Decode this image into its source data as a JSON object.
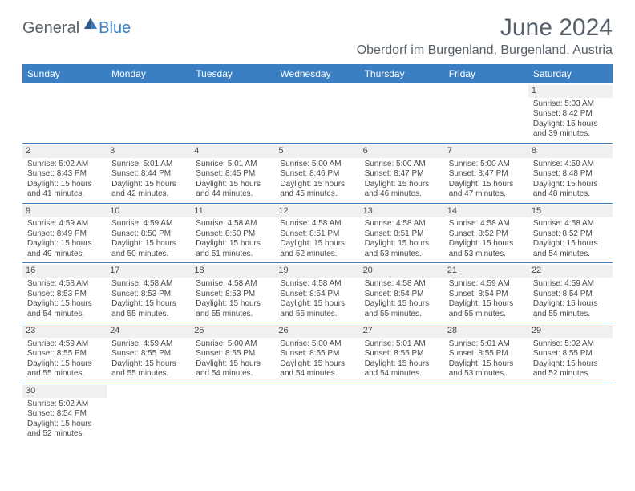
{
  "logo": {
    "text1": "General",
    "text2": "Blue"
  },
  "title": "June 2024",
  "location": "Oberdorf im Burgenland, Burgenland, Austria",
  "colors": {
    "header_bg": "#3a7fc4",
    "header_text": "#ffffff",
    "daynum_bg": "#f0f0f0",
    "text": "#4a4a4a",
    "rule": "#3a7fc4"
  },
  "dayNames": [
    "Sunday",
    "Monday",
    "Tuesday",
    "Wednesday",
    "Thursday",
    "Friday",
    "Saturday"
  ],
  "weeks": [
    [
      null,
      null,
      null,
      null,
      null,
      null,
      {
        "d": "1",
        "sr": "Sunrise: 5:03 AM",
        "ss": "Sunset: 8:42 PM",
        "dl": "Daylight: 15 hours and 39 minutes."
      }
    ],
    [
      {
        "d": "2",
        "sr": "Sunrise: 5:02 AM",
        "ss": "Sunset: 8:43 PM",
        "dl": "Daylight: 15 hours and 41 minutes."
      },
      {
        "d": "3",
        "sr": "Sunrise: 5:01 AM",
        "ss": "Sunset: 8:44 PM",
        "dl": "Daylight: 15 hours and 42 minutes."
      },
      {
        "d": "4",
        "sr": "Sunrise: 5:01 AM",
        "ss": "Sunset: 8:45 PM",
        "dl": "Daylight: 15 hours and 44 minutes."
      },
      {
        "d": "5",
        "sr": "Sunrise: 5:00 AM",
        "ss": "Sunset: 8:46 PM",
        "dl": "Daylight: 15 hours and 45 minutes."
      },
      {
        "d": "6",
        "sr": "Sunrise: 5:00 AM",
        "ss": "Sunset: 8:47 PM",
        "dl": "Daylight: 15 hours and 46 minutes."
      },
      {
        "d": "7",
        "sr": "Sunrise: 5:00 AM",
        "ss": "Sunset: 8:47 PM",
        "dl": "Daylight: 15 hours and 47 minutes."
      },
      {
        "d": "8",
        "sr": "Sunrise: 4:59 AM",
        "ss": "Sunset: 8:48 PM",
        "dl": "Daylight: 15 hours and 48 minutes."
      }
    ],
    [
      {
        "d": "9",
        "sr": "Sunrise: 4:59 AM",
        "ss": "Sunset: 8:49 PM",
        "dl": "Daylight: 15 hours and 49 minutes."
      },
      {
        "d": "10",
        "sr": "Sunrise: 4:59 AM",
        "ss": "Sunset: 8:50 PM",
        "dl": "Daylight: 15 hours and 50 minutes."
      },
      {
        "d": "11",
        "sr": "Sunrise: 4:58 AM",
        "ss": "Sunset: 8:50 PM",
        "dl": "Daylight: 15 hours and 51 minutes."
      },
      {
        "d": "12",
        "sr": "Sunrise: 4:58 AM",
        "ss": "Sunset: 8:51 PM",
        "dl": "Daylight: 15 hours and 52 minutes."
      },
      {
        "d": "13",
        "sr": "Sunrise: 4:58 AM",
        "ss": "Sunset: 8:51 PM",
        "dl": "Daylight: 15 hours and 53 minutes."
      },
      {
        "d": "14",
        "sr": "Sunrise: 4:58 AM",
        "ss": "Sunset: 8:52 PM",
        "dl": "Daylight: 15 hours and 53 minutes."
      },
      {
        "d": "15",
        "sr": "Sunrise: 4:58 AM",
        "ss": "Sunset: 8:52 PM",
        "dl": "Daylight: 15 hours and 54 minutes."
      }
    ],
    [
      {
        "d": "16",
        "sr": "Sunrise: 4:58 AM",
        "ss": "Sunset: 8:53 PM",
        "dl": "Daylight: 15 hours and 54 minutes."
      },
      {
        "d": "17",
        "sr": "Sunrise: 4:58 AM",
        "ss": "Sunset: 8:53 PM",
        "dl": "Daylight: 15 hours and 55 minutes."
      },
      {
        "d": "18",
        "sr": "Sunrise: 4:58 AM",
        "ss": "Sunset: 8:53 PM",
        "dl": "Daylight: 15 hours and 55 minutes."
      },
      {
        "d": "19",
        "sr": "Sunrise: 4:58 AM",
        "ss": "Sunset: 8:54 PM",
        "dl": "Daylight: 15 hours and 55 minutes."
      },
      {
        "d": "20",
        "sr": "Sunrise: 4:58 AM",
        "ss": "Sunset: 8:54 PM",
        "dl": "Daylight: 15 hours and 55 minutes."
      },
      {
        "d": "21",
        "sr": "Sunrise: 4:59 AM",
        "ss": "Sunset: 8:54 PM",
        "dl": "Daylight: 15 hours and 55 minutes."
      },
      {
        "d": "22",
        "sr": "Sunrise: 4:59 AM",
        "ss": "Sunset: 8:54 PM",
        "dl": "Daylight: 15 hours and 55 minutes."
      }
    ],
    [
      {
        "d": "23",
        "sr": "Sunrise: 4:59 AM",
        "ss": "Sunset: 8:55 PM",
        "dl": "Daylight: 15 hours and 55 minutes."
      },
      {
        "d": "24",
        "sr": "Sunrise: 4:59 AM",
        "ss": "Sunset: 8:55 PM",
        "dl": "Daylight: 15 hours and 55 minutes."
      },
      {
        "d": "25",
        "sr": "Sunrise: 5:00 AM",
        "ss": "Sunset: 8:55 PM",
        "dl": "Daylight: 15 hours and 54 minutes."
      },
      {
        "d": "26",
        "sr": "Sunrise: 5:00 AM",
        "ss": "Sunset: 8:55 PM",
        "dl": "Daylight: 15 hours and 54 minutes."
      },
      {
        "d": "27",
        "sr": "Sunrise: 5:01 AM",
        "ss": "Sunset: 8:55 PM",
        "dl": "Daylight: 15 hours and 54 minutes."
      },
      {
        "d": "28",
        "sr": "Sunrise: 5:01 AM",
        "ss": "Sunset: 8:55 PM",
        "dl": "Daylight: 15 hours and 53 minutes."
      },
      {
        "d": "29",
        "sr": "Sunrise: 5:02 AM",
        "ss": "Sunset: 8:55 PM",
        "dl": "Daylight: 15 hours and 52 minutes."
      }
    ],
    [
      {
        "d": "30",
        "sr": "Sunrise: 5:02 AM",
        "ss": "Sunset: 8:54 PM",
        "dl": "Daylight: 15 hours and 52 minutes."
      },
      null,
      null,
      null,
      null,
      null,
      null
    ]
  ]
}
